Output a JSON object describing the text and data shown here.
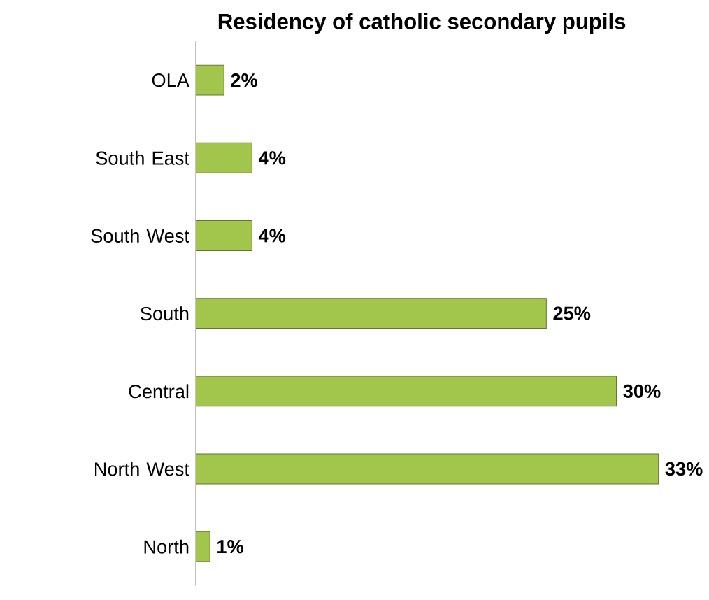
{
  "chart_data": {
    "type": "bar",
    "orientation": "horizontal",
    "title": "Residency of catholic secondary pupils",
    "categories": [
      "OLA",
      "South East",
      "South West",
      "South",
      "Central",
      "North West",
      "North"
    ],
    "values": [
      2,
      4,
      4,
      25,
      30,
      33,
      1
    ],
    "value_labels": [
      "2%",
      "4%",
      "4%",
      "25%",
      "30%",
      "33%",
      "1%"
    ],
    "color": "#a2c64c"
  }
}
